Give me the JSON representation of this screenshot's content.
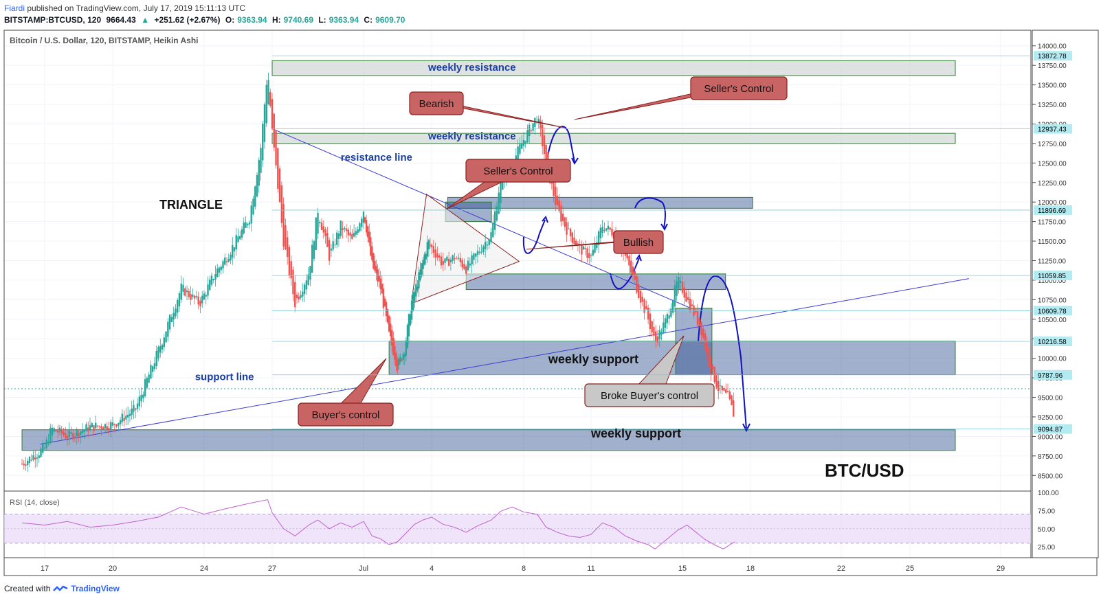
{
  "header": {
    "author": "Fiardi",
    "published_text": "published on TradingView.com, July 17, 2019 15:11:13 UTC",
    "symbol": "BITSTAMP:BTCUSD, 120",
    "last": "9664.43",
    "change_arrow": "▲",
    "change": "+251.62 (+2.67%)",
    "o_label": "O:",
    "o_value": "9363.94",
    "h_label": "H:",
    "h_value": "9740.69",
    "l_label": "L:",
    "l_value": "9363.94",
    "c_label": "C:",
    "c_value": "9609.70"
  },
  "footer": {
    "created_with": "Created with",
    "brand": "TradingView"
  },
  "colors": {
    "up": "#26a69a",
    "down": "#ef5350",
    "zone_fill": "#2f4f8f",
    "label_fill": "#c86464",
    "label_gray": "#c8c8c8",
    "trendline": "#3a3ad6",
    "arrow": "#1010c0",
    "price_tag": "#b2ebf2",
    "rsi_band": "#e8d8f8",
    "rsi_line": "#c060d0"
  },
  "chart_data": {
    "type": "candlestick",
    "title": "Bitcoin / U.S. Dollar, 120, BITSTAMP, Heikin Ashi",
    "ylim": [
      8300,
      14200
    ],
    "yticks": [
      8500,
      8750,
      9000,
      9250,
      9500,
      9750,
      10000,
      10250,
      10500,
      10750,
      11000,
      11250,
      11500,
      11750,
      12000,
      12250,
      12500,
      12750,
      13000,
      13250,
      13500,
      13750,
      14000
    ],
    "ytick_labels": [
      "8500.00",
      "8750.00",
      "9000.00",
      "9250.00",
      "9500.00",
      "9750.00",
      "10000.00",
      "10250.00",
      "10500.00",
      "10750.00",
      "11000.00",
      "11250.00",
      "11500.00",
      "11750.00",
      "12000.00",
      "12250.00",
      "12500.00",
      "12750.00",
      "13000.00",
      "13250.00",
      "13500.00",
      "13750.00",
      "14000.00"
    ],
    "xticks": [
      "17",
      "20",
      "24",
      "27",
      "Jul",
      "4",
      "8",
      "11",
      "15",
      "18",
      "22",
      "25",
      "29"
    ],
    "price_tags": [
      "13872.78",
      "12937.43",
      "11896.69",
      "11059.85",
      "10609.78",
      "10216.58",
      "9787.96",
      "9094.87"
    ],
    "price_path": [
      [
        16,
        8650
      ],
      [
        17,
        8850
      ],
      [
        17.3,
        9100
      ],
      [
        18,
        9000
      ],
      [
        19,
        9120
      ],
      [
        20,
        9150
      ],
      [
        21,
        9350
      ],
      [
        22,
        10100
      ],
      [
        23,
        10900
      ],
      [
        23.8,
        10700
      ],
      [
        24.5,
        11100
      ],
      [
        25,
        11300
      ],
      [
        26,
        11800
      ],
      [
        26.5,
        12700
      ],
      [
        26.8,
        13700
      ],
      [
        27,
        12900
      ],
      [
        27.5,
        11500
      ],
      [
        28,
        10700
      ],
      [
        28.6,
        11100
      ],
      [
        29,
        11900
      ],
      [
        29.5,
        11300
      ],
      [
        30,
        11700
      ],
      [
        30.5,
        11500
      ],
      [
        31,
        11900
      ],
      [
        31.5,
        11200
      ],
      [
        32,
        10900
      ],
      [
        32.5,
        10300
      ],
      [
        33,
        9900
      ],
      [
        33.4,
        10100
      ],
      [
        33.8,
        10700
      ],
      [
        34.2,
        11000
      ],
      [
        34.8,
        11500
      ],
      [
        35.5,
        11200
      ],
      [
        36,
        11300
      ],
      [
        36.5,
        11150
      ],
      [
        37,
        11350
      ],
      [
        37.6,
        11600
      ],
      [
        38,
        12300
      ],
      [
        38.5,
        12500
      ],
      [
        39,
        12800
      ],
      [
        39.6,
        13100
      ],
      [
        40,
        12500
      ],
      [
        40.5,
        11900
      ],
      [
        41,
        11600
      ],
      [
        41.5,
        11400
      ],
      [
        42,
        11300
      ],
      [
        42.5,
        11700
      ],
      [
        43,
        11600
      ],
      [
        43.5,
        11300
      ],
      [
        44,
        10900
      ],
      [
        44.5,
        10500
      ],
      [
        44.8,
        10200
      ],
      [
        45.3,
        10500
      ],
      [
        45.8,
        11000
      ],
      [
        46.3,
        10700
      ],
      [
        46.8,
        10400
      ],
      [
        47.2,
        9900
      ],
      [
        47.6,
        9600
      ],
      [
        48,
        9500
      ],
      [
        48.3,
        9250
      ]
    ],
    "rsi": {
      "label": "RSI (14, close)",
      "ylim": [
        10,
        100
      ],
      "yticks": [
        25,
        50,
        75,
        100
      ],
      "ytick_labels": [
        "25.00",
        "50.00",
        "75.00",
        "100.00"
      ],
      "band": [
        30,
        70
      ],
      "values": [
        [
          16,
          58
        ],
        [
          17,
          55
        ],
        [
          18,
          60
        ],
        [
          19,
          52
        ],
        [
          20,
          55
        ],
        [
          21,
          60
        ],
        [
          22,
          66
        ],
        [
          23,
          80
        ],
        [
          24,
          70
        ],
        [
          25,
          78
        ],
        [
          26,
          85
        ],
        [
          26.8,
          90
        ],
        [
          27,
          72
        ],
        [
          27.5,
          50
        ],
        [
          28,
          40
        ],
        [
          28.6,
          55
        ],
        [
          29,
          62
        ],
        [
          29.5,
          50
        ],
        [
          30,
          58
        ],
        [
          30.5,
          52
        ],
        [
          31,
          60
        ],
        [
          31.5,
          40
        ],
        [
          32,
          36
        ],
        [
          32.5,
          28
        ],
        [
          33,
          32
        ],
        [
          33.5,
          44
        ],
        [
          34,
          56
        ],
        [
          34.5,
          62
        ],
        [
          35,
          66
        ],
        [
          35.5,
          56
        ],
        [
          36,
          52
        ],
        [
          36.5,
          45
        ],
        [
          37,
          54
        ],
        [
          37.6,
          62
        ],
        [
          38,
          74
        ],
        [
          38.5,
          80
        ],
        [
          39,
          73
        ],
        [
          39.6,
          70
        ],
        [
          40,
          52
        ],
        [
          40.5,
          45
        ],
        [
          41,
          40
        ],
        [
          41.5,
          38
        ],
        [
          42,
          42
        ],
        [
          42.5,
          58
        ],
        [
          43,
          52
        ],
        [
          43.5,
          40
        ],
        [
          44,
          33
        ],
        [
          44.5,
          28
        ],
        [
          44.8,
          22
        ],
        [
          45.3,
          35
        ],
        [
          45.8,
          48
        ],
        [
          46.2,
          55
        ],
        [
          46.6,
          45
        ],
        [
          47,
          35
        ],
        [
          47.4,
          28
        ],
        [
          47.8,
          22
        ],
        [
          48.3,
          32
        ]
      ]
    },
    "zones": [
      {
        "label": "weekly resistance",
        "x0": 27,
        "x1": 58,
        "y0": 13620,
        "y1": 13810,
        "style": "light"
      },
      {
        "label": "weekly resistance",
        "x0": 27,
        "x1": 58,
        "y0": 12750,
        "y1": 12880,
        "style": "light"
      },
      {
        "label": "",
        "x0": 35.7,
        "x1": 49.1,
        "y0": 11920,
        "y1": 12060,
        "style": "dark"
      },
      {
        "label": "",
        "x0": 35.6,
        "x1": 37.6,
        "y0": 11750,
        "y1": 12000,
        "style": "dark"
      },
      {
        "label": "",
        "x0": 36.5,
        "x1": 47.9,
        "y0": 10880,
        "y1": 11080,
        "style": "dark"
      },
      {
        "label": "weekly support",
        "x0": 32.5,
        "x1": 58,
        "y0": 9790,
        "y1": 10220,
        "style": "dark"
      },
      {
        "label": "",
        "x0": 45.7,
        "x1": 47.3,
        "y0": 9790,
        "y1": 10640,
        "style": "dark"
      },
      {
        "label": "weekly support",
        "x0": 16,
        "x1": 58,
        "y0": 8820,
        "y1": 9085,
        "style": "dark"
      }
    ],
    "annotations": [
      "TRIANGLE",
      "resistance line",
      "support line",
      "BTC/USD"
    ],
    "callouts": [
      "Bearish",
      "Seller's Control",
      "Seller's Control",
      "Bullish",
      "Buyer's control",
      "Broke Buyer's control"
    ]
  }
}
